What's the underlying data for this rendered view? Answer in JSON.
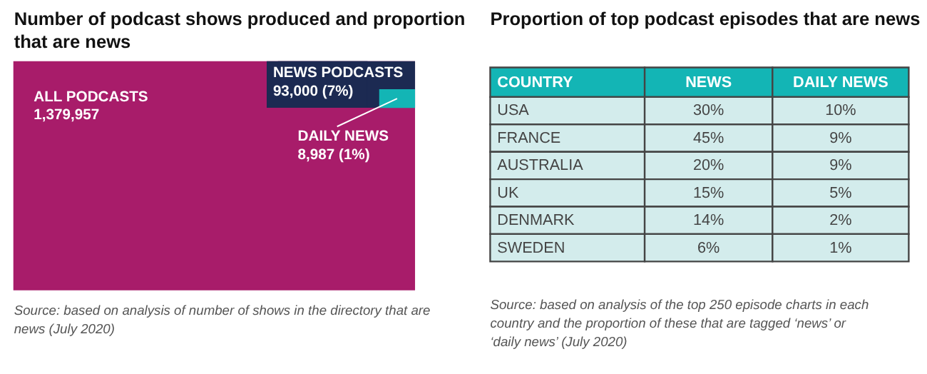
{
  "chart_data": [
    {
      "type": "other",
      "title": "Number of podcast shows produced and proportion that are news",
      "categories": [
        "ALL PODCASTS",
        "NEWS PODCASTS",
        "DAILY NEWS"
      ],
      "values": [
        1379957,
        93000,
        8987
      ],
      "value_labels": [
        "1,379,957",
        "93,000 (7%)",
        "8,987 (1%)"
      ],
      "colors": [
        "#a81c6a",
        "#1c2a52",
        "#13b5b5"
      ],
      "annotations": [
        "Source: based on analysis of number of shows in the directory that are news (July 2020)"
      ]
    },
    {
      "type": "other",
      "title": "Proportion of top podcast episodes that are news",
      "ylabel": "COUNTRY",
      "categories": [
        "USA",
        "FRANCE",
        "AUSTRALIA",
        "UK",
        "DENMARK",
        "SWEDEN"
      ],
      "series": [
        {
          "name": "NEWS",
          "color": "#d3ecec",
          "values": [
            30,
            45,
            20,
            15,
            14,
            6
          ],
          "value_labels": [
            "30%",
            "45%",
            "20%",
            "15%",
            "14%",
            "6%"
          ]
        },
        {
          "name": "DAILY NEWS",
          "color": "#d3ecec",
          "values": [
            10,
            9,
            9,
            5,
            2,
            1
          ],
          "value_labels": [
            "10%",
            "9%",
            "9%",
            "5%",
            "2%",
            "1%"
          ]
        }
      ],
      "annotations": [
        "Source: based on analysis of the top 250 episode charts in each country and the proportion of these that are tagged ‘news’ or ‘daily news’ (July 2020)"
      ]
    }
  ]
}
